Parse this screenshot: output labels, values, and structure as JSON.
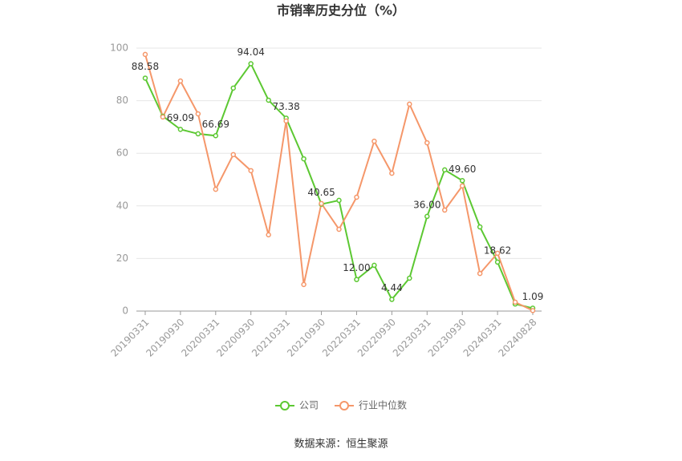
{
  "chart_data": {
    "type": "line",
    "title": "市销率历史分位（%）",
    "source": "数据来源：恒生聚源",
    "categories": [
      "20190331",
      null,
      "20190930",
      null,
      "20200331",
      null,
      "20200930",
      null,
      "20210331",
      null,
      "20210930",
      null,
      "20220331",
      null,
      "20220930",
      null,
      "20230331",
      null,
      "20230930",
      null,
      "20240331",
      null,
      "20240828"
    ],
    "ylim": [
      0,
      100
    ],
    "yticks": [
      0,
      20,
      40,
      60,
      80,
      100
    ],
    "grid": true,
    "legend": "bottom",
    "series": [
      {
        "name": "公司",
        "color": "#5cc832",
        "values": [
          88.58,
          74.1,
          69.09,
          67.4,
          66.69,
          84.8,
          94.04,
          80.2,
          73.38,
          57.9,
          40.65,
          42.1,
          12.0,
          17.4,
          4.44,
          12.5,
          36.0,
          53.7,
          49.6,
          32.0,
          18.62,
          2.7,
          1.09
        ],
        "value_labels": [
          "88.58",
          null,
          "69.09",
          null,
          "66.69",
          null,
          "94.04",
          null,
          "73.38",
          null,
          "40.65",
          null,
          "12.00",
          null,
          "4.44",
          null,
          "36.00",
          null,
          "49.60",
          null,
          "18.62",
          null,
          "1.09"
        ]
      },
      {
        "name": "行业中位数",
        "color": "#f5976a",
        "values": [
          97.6,
          73.8,
          87.5,
          75.0,
          46.3,
          59.5,
          53.4,
          29.0,
          72.3,
          10.1,
          40.9,
          31.1,
          43.3,
          64.6,
          52.4,
          78.7,
          64.0,
          38.4,
          47.6,
          14.3,
          22.0,
          3.4,
          0.2
        ]
      }
    ]
  }
}
